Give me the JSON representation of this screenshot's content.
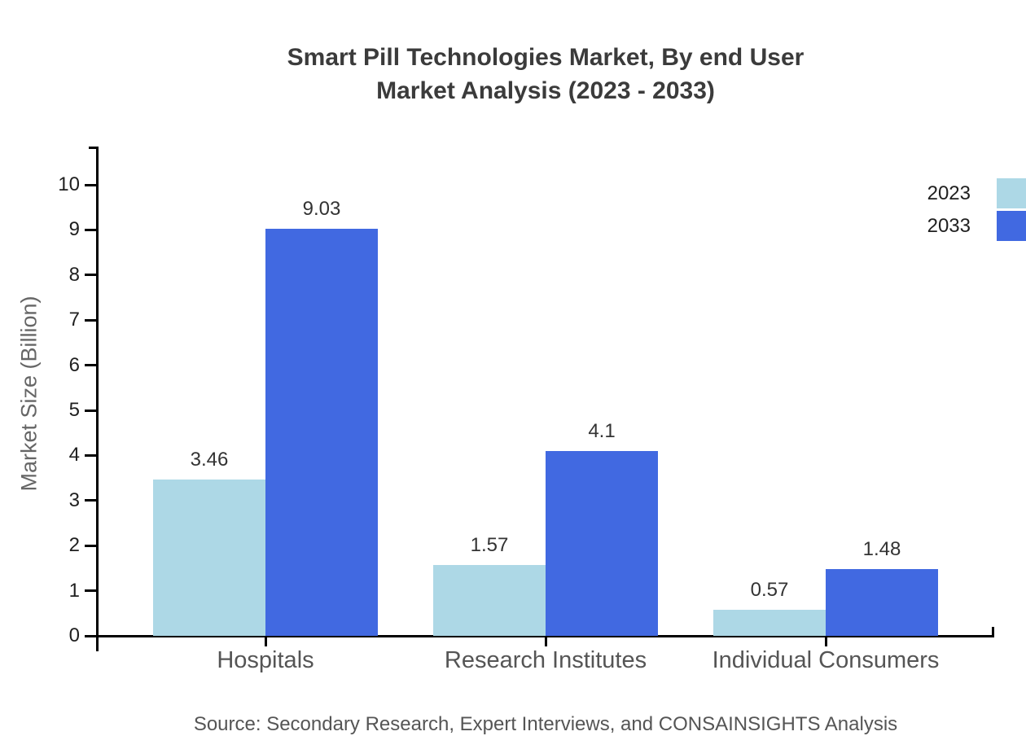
{
  "title": {
    "line1": "Smart Pill Technologies Market, By end User",
    "line2": "Market Analysis (2023 - 2033)"
  },
  "chart_data": {
    "type": "bar",
    "categories": [
      "Hospitals",
      "Research Institutes",
      "Individual Consumers"
    ],
    "series": [
      {
        "name": "2023",
        "color": "#ADD8E6",
        "values": [
          3.46,
          1.57,
          0.57
        ]
      },
      {
        "name": "2033",
        "color": "#4169E1",
        "values": [
          9.03,
          4.1,
          1.48
        ]
      }
    ],
    "value_labels": {
      "2023": [
        "3.46",
        "1.57",
        "0.57"
      ],
      "2033": [
        "9.03",
        "4.1",
        "1.48"
      ]
    },
    "title": "Smart Pill Technologies Market, By end User Market Analysis (2023 - 2033)",
    "xlabel": "",
    "ylabel": "Market Size (Billion)",
    "ylim": [
      0,
      10
    ],
    "yticks": [
      0,
      1,
      2,
      3,
      4,
      5,
      6,
      7,
      8,
      9,
      10
    ],
    "grid": false,
    "legend_position": "top-right",
    "bar_value_labels_shown": true
  },
  "colors": {
    "series_2023": "#ADD8E6",
    "series_2033": "#4169E1",
    "axis": "#000000",
    "title_text": "#3b3b3b",
    "category_text": "#555555",
    "source_text": "#555555"
  },
  "source": {
    "text": "Source: Secondary Research, Expert Interviews, and CONSAINSIGHTS Analysis"
  }
}
